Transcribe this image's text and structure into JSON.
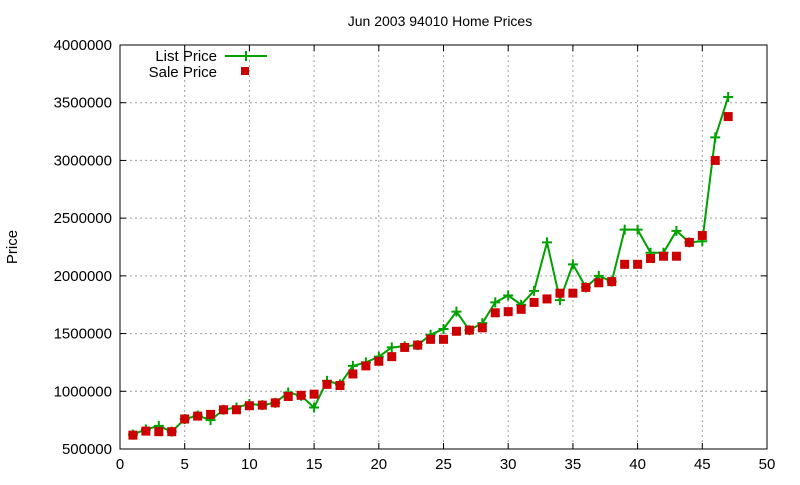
{
  "chart_data": {
    "type": "line",
    "title": "Jun 2003 94010 Home Prices",
    "xlabel": "",
    "ylabel": "Price",
    "xlim": [
      0,
      50
    ],
    "ylim": [
      500000,
      4000000
    ],
    "xticks": [
      0,
      5,
      10,
      15,
      20,
      25,
      30,
      35,
      40,
      45,
      50
    ],
    "yticks": [
      500000,
      1000000,
      1500000,
      2000000,
      2500000,
      3000000,
      3500000,
      4000000
    ],
    "grid": true,
    "legend_position": "top-left",
    "x": [
      1,
      2,
      3,
      4,
      5,
      6,
      7,
      8,
      9,
      10,
      11,
      12,
      13,
      14,
      15,
      16,
      17,
      18,
      19,
      20,
      21,
      22,
      23,
      24,
      25,
      26,
      27,
      28,
      29,
      30,
      31,
      32,
      33,
      34,
      35,
      36,
      37,
      38,
      39,
      40,
      41,
      42,
      43,
      44,
      45,
      46,
      47
    ],
    "series": [
      {
        "name": "List Price",
        "color": "#00a000",
        "style": "linespoints",
        "marker": "plus",
        "values": [
          625000,
          670000,
          700000,
          650000,
          760000,
          790000,
          750000,
          840000,
          860000,
          890000,
          880000,
          900000,
          990000,
          960000,
          860000,
          1090000,
          1060000,
          1220000,
          1250000,
          1300000,
          1380000,
          1390000,
          1400000,
          1490000,
          1540000,
          1690000,
          1530000,
          1590000,
          1770000,
          1830000,
          1750000,
          1870000,
          2290000,
          1790000,
          2100000,
          1900000,
          2000000,
          1950000,
          2400000,
          2400000,
          2200000,
          2200000,
          2390000,
          2290000,
          2300000,
          3200000,
          3550000
        ]
      },
      {
        "name": "Sale Price",
        "color": "#cc0000",
        "style": "points",
        "marker": "square",
        "values": [
          620000,
          655000,
          650000,
          650000,
          760000,
          785000,
          800000,
          840000,
          840000,
          875000,
          880000,
          900000,
          955000,
          965000,
          975000,
          1060000,
          1050000,
          1150000,
          1220000,
          1260000,
          1300000,
          1380000,
          1400000,
          1450000,
          1450000,
          1520000,
          1530000,
          1550000,
          1680000,
          1690000,
          1710000,
          1770000,
          1800000,
          1850000,
          1850000,
          1900000,
          1940000,
          1950000,
          2100000,
          2100000,
          2150000,
          2170000,
          2170000,
          2290000,
          2350000,
          3000000,
          3380000
        ]
      }
    ]
  }
}
